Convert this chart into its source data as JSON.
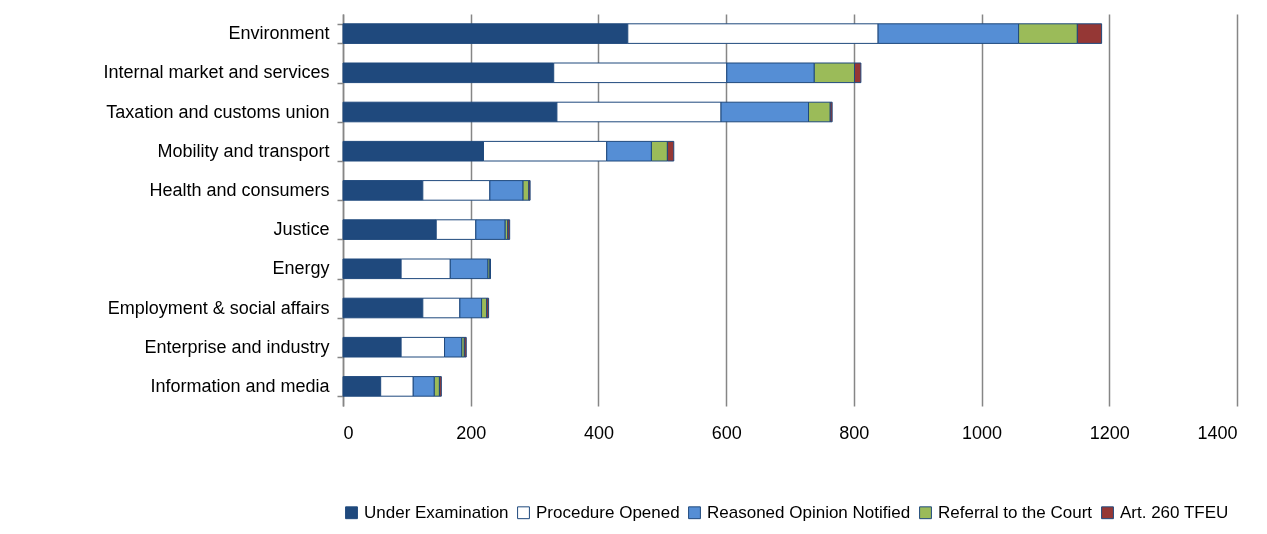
{
  "chart_data": {
    "type": "bar",
    "orientation": "horizontal",
    "stacked": true,
    "categories": [
      "Environment",
      "Internal market and services",
      "Taxation and customs union",
      "Mobility and transport",
      "Health and consumers",
      "Justice",
      "Energy",
      "Employment & social affairs",
      "Enterprise and industry",
      "Information and media"
    ],
    "series": [
      {
        "name": "Under Examination",
        "color": "#1f497d",
        "values": [
          446,
          330,
          335,
          220,
          125,
          146,
          91,
          125,
          91,
          59
        ]
      },
      {
        "name": "Procedure Opened",
        "color": "#ffffff",
        "values": [
          392,
          271,
          257,
          193,
          105,
          62,
          77,
          58,
          68,
          51
        ]
      },
      {
        "name": "Reasoned Opinion Notified",
        "color": "#558ed5",
        "values": [
          220,
          137,
          137,
          70,
          52,
          46,
          59,
          34,
          27,
          33
        ]
      },
      {
        "name": "Referral to the Court",
        "color": "#9bbb59",
        "values": [
          92,
          63,
          34,
          25,
          9,
          4,
          3,
          8,
          4,
          8
        ]
      },
      {
        "name": "Art. 260 TFEU",
        "color": "#953735",
        "values": [
          38,
          10,
          3,
          10,
          2,
          3,
          1,
          3,
          3,
          3
        ]
      }
    ],
    "xlim": [
      0,
      1400
    ],
    "xticks": [
      0,
      200,
      400,
      600,
      800,
      1000,
      1200,
      1400
    ],
    "grid": "x",
    "legend": "bottom"
  }
}
